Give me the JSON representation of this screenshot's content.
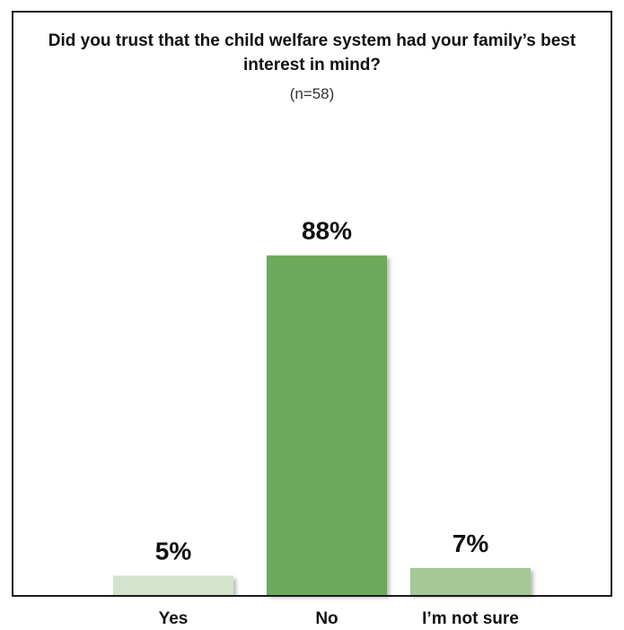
{
  "chart_data": {
    "type": "bar",
    "title": "Did you trust that the child welfare system had your family’s best interest in mind?",
    "subtitle": "(n=58)",
    "categories": [
      "Yes",
      "No",
      "I’m not sure"
    ],
    "values": [
      5,
      88,
      7
    ],
    "data_labels": [
      "5%",
      "88%",
      "7%"
    ],
    "unit": "%",
    "colors": [
      "#d5e3cd",
      "#6aaa5a",
      "#a5c896"
    ],
    "ylim": [
      0,
      100
    ],
    "grid": false,
    "legend": "none"
  }
}
